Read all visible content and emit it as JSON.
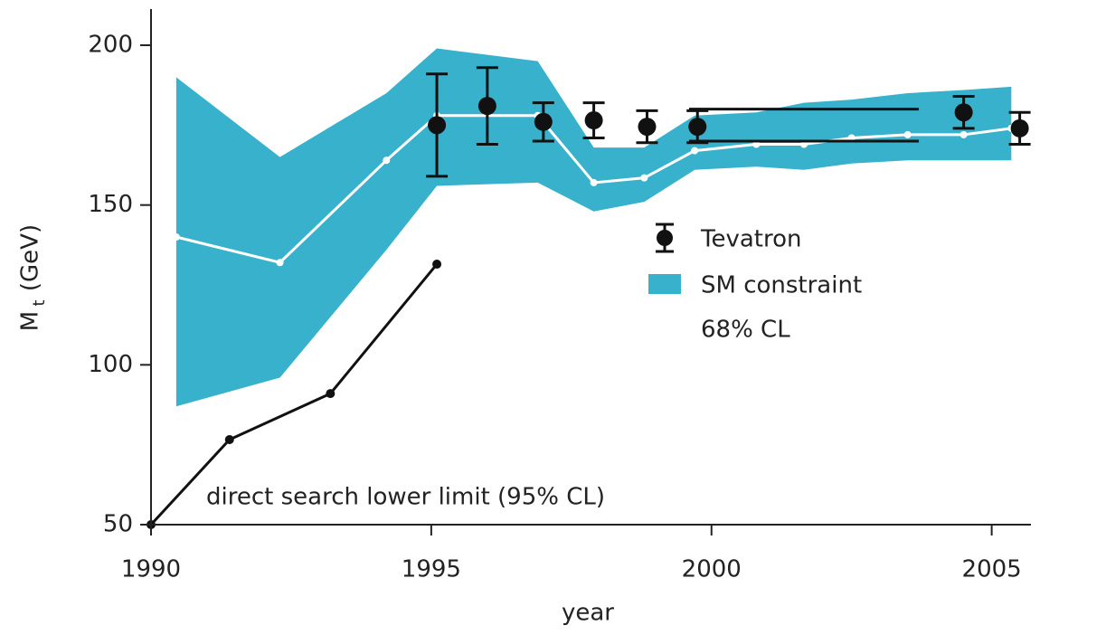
{
  "chart_data": {
    "type": "band-errorbar",
    "xlabel": "year",
    "ylabel_main": "M",
    "ylabel_sub": "t",
    "ylabel_unit": "(GeV)",
    "xlim": [
      1990,
      2005.7
    ],
    "xticks": [
      1990,
      1995,
      2000,
      2005
    ],
    "ylim": [
      50,
      200
    ],
    "yticks": [
      50,
      100,
      150,
      200
    ],
    "band": {
      "name": "SM constraint",
      "note": "68% CL",
      "color": "#38b2cc",
      "center_color": "#ffffff",
      "x": [
        1990.45,
        1992.3,
        1994.2,
        1995.1,
        1996.9,
        1997.9,
        1998.8,
        1999.7,
        2000.8,
        2001.65,
        2002.5,
        2003.5,
        2004.5,
        2005.35
      ],
      "upper": [
        190,
        165,
        185,
        199,
        195,
        168,
        168,
        178,
        179,
        182,
        183,
        185,
        186,
        187
      ],
      "lower": [
        87,
        96,
        136,
        156,
        157,
        148,
        151,
        161,
        162,
        161,
        163,
        164,
        164,
        164
      ],
      "center": [
        140,
        132,
        164,
        178,
        178,
        157,
        158.5,
        167,
        169,
        169,
        171,
        172,
        172,
        174
      ]
    },
    "points": {
      "name": "Tevatron",
      "color": "#111111",
      "x": [
        1995.1,
        1996.0,
        1997.0,
        1997.9,
        1998.85,
        1999.75,
        2004.5,
        2005.5
      ],
      "values": [
        175,
        181,
        176,
        176.5,
        174.5,
        174.5,
        179,
        174
      ],
      "errors": [
        16,
        12,
        6,
        5.5,
        5,
        5,
        5,
        5
      ]
    },
    "hlines": {
      "color": "#111111",
      "x": [
        1999.6,
        2003.7
      ],
      "values": [
        180,
        170
      ]
    },
    "limit": {
      "name": "direct search lower limit (95% CL)",
      "color": "#111111",
      "x": [
        1990,
        1991.4,
        1993.2,
        1995.1
      ],
      "values": [
        50,
        76.6,
        91,
        131.5
      ]
    }
  }
}
